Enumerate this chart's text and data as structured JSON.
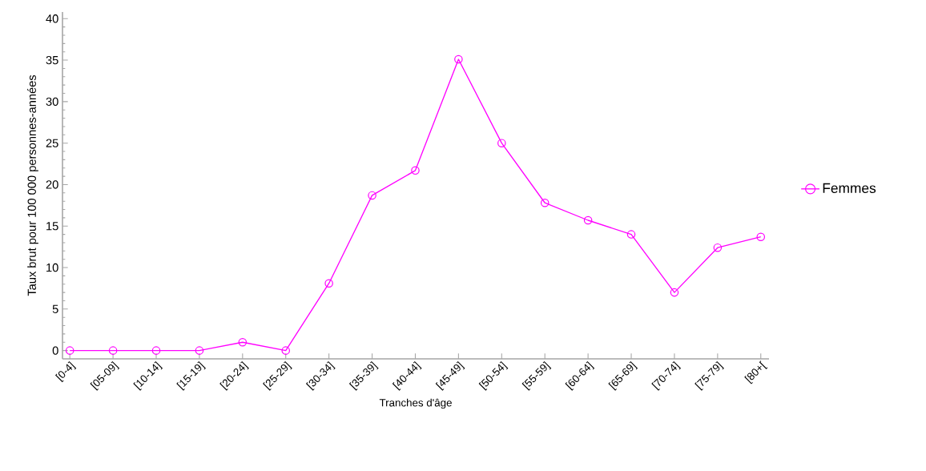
{
  "chart_data": {
    "type": "line",
    "xlabel": "Tranches d'âge",
    "ylabel": "Taux brut pour 100 000 personnes-années",
    "categories": [
      "[0-4]",
      "[05-09]",
      "[10-14]",
      "[15-19]",
      "[20-24]",
      "[25-29]",
      "[30-34]",
      "[35-39]",
      "[40-44]",
      "[45-49]",
      "[50-54]",
      "[55-59]",
      "[60-64]",
      "[65-69]",
      "[70-74]",
      "[75-79]",
      "[80+["
    ],
    "series": [
      {
        "name": "Femmes",
        "color": "#ff00ff",
        "values": [
          0,
          0,
          0,
          0,
          1.0,
          0,
          8.1,
          18.7,
          21.7,
          35.1,
          25.0,
          17.8,
          15.7,
          14.0,
          7.0,
          12.4,
          13.7
        ]
      }
    ],
    "ylim": [
      -1,
      40.8
    ],
    "yticks": [
      0,
      5,
      10,
      15,
      20,
      25,
      30,
      35,
      40
    ],
    "grid": false,
    "legend": "right",
    "marker": "circle",
    "line_style": "solid"
  }
}
